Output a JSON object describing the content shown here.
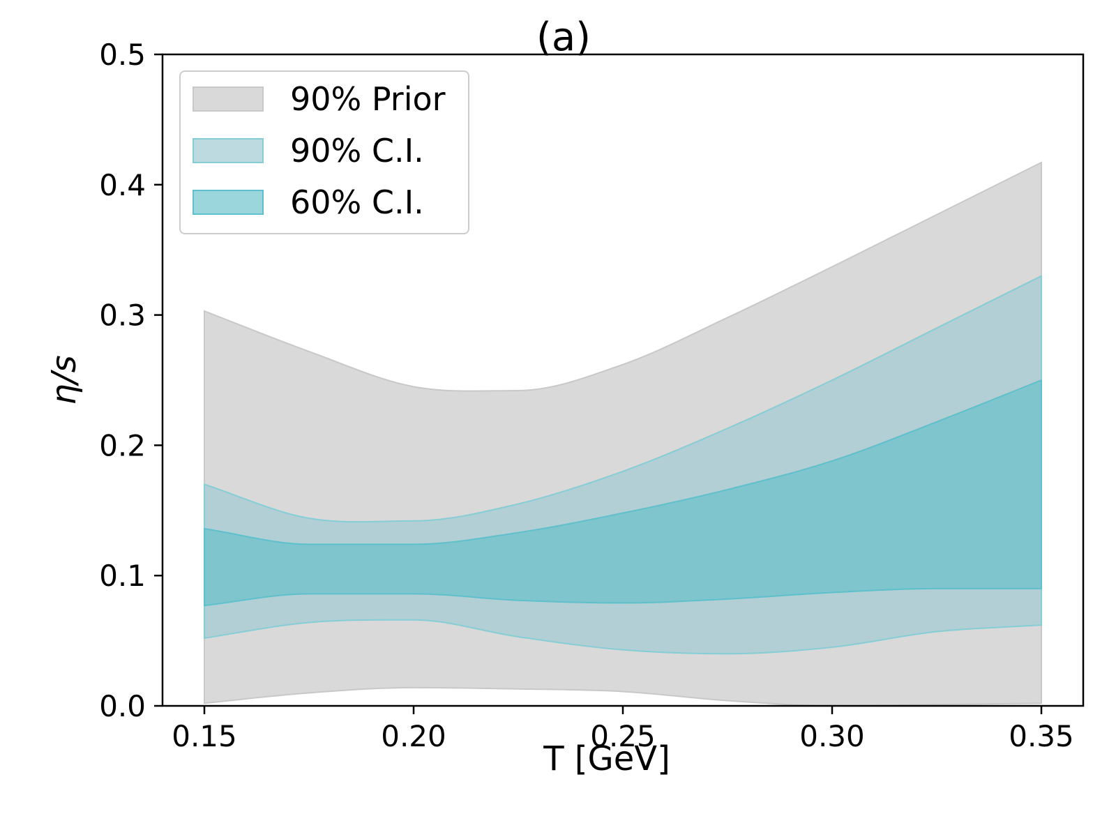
{
  "chart_data": {
    "type": "area",
    "title": "(a)",
    "xlabel": "T [GeV]",
    "ylabel": "η/s",
    "xlim": [
      0.14,
      0.36
    ],
    "ylim": [
      0.0,
      0.5
    ],
    "xticks": [
      0.15,
      0.2,
      0.25,
      0.3,
      0.35
    ],
    "xtick_labels": [
      "0.15",
      "0.20",
      "0.25",
      "0.30",
      "0.35"
    ],
    "yticks": [
      0.0,
      0.1,
      0.2,
      0.3,
      0.4,
      0.5
    ],
    "ytick_labels": [
      "0.0",
      "0.1",
      "0.2",
      "0.3",
      "0.4",
      "0.5"
    ],
    "grid": false,
    "legend_position": "top-left",
    "x": [
      0.15,
      0.175,
      0.2,
      0.225,
      0.25,
      0.275,
      0.3,
      0.325,
      0.35
    ],
    "series": [
      {
        "name": "90% Prior",
        "color": "#d9d9d9",
        "stroke": "#c8c8c8",
        "lower": [
          0.002,
          0.01,
          0.014,
          0.013,
          0.011,
          0.004,
          0.0,
          0.001,
          0.002
        ],
        "upper": [
          0.303,
          0.272,
          0.245,
          0.242,
          0.262,
          0.298,
          0.337,
          0.377,
          0.417
        ]
      },
      {
        "name": "90% C.I.",
        "color": "#9fcbd1",
        "stroke": "#86cdd6",
        "opacity": 0.7,
        "lower": [
          0.052,
          0.064,
          0.066,
          0.053,
          0.043,
          0.04,
          0.045,
          0.057,
          0.062
        ],
        "upper": [
          0.17,
          0.144,
          0.142,
          0.155,
          0.18,
          0.213,
          0.25,
          0.29,
          0.33
        ]
      },
      {
        "name": "60% C.I.",
        "color": "#64c0ca",
        "stroke": "#5ec0cc",
        "opacity": 0.65,
        "lower": [
          0.077,
          0.086,
          0.086,
          0.081,
          0.079,
          0.082,
          0.087,
          0.09,
          0.09
        ],
        "upper": [
          0.136,
          0.124,
          0.124,
          0.133,
          0.148,
          0.166,
          0.188,
          0.218,
          0.25
        ]
      }
    ]
  }
}
